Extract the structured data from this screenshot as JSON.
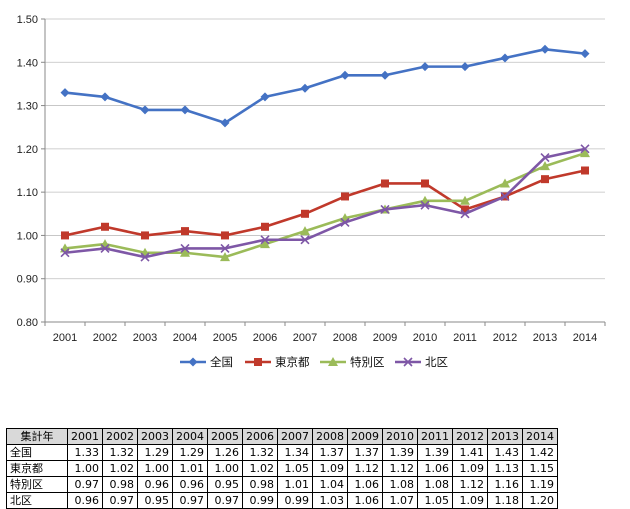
{
  "chart_data": {
    "type": "line",
    "x": [
      "2001",
      "2002",
      "2003",
      "2004",
      "2005",
      "2006",
      "2007",
      "2008",
      "2009",
      "2010",
      "2011",
      "2012",
      "2013",
      "2014"
    ],
    "ylim": [
      0.8,
      1.5
    ],
    "yticks": [
      "0.80",
      "0.90",
      "1.00",
      "1.10",
      "1.20",
      "1.30",
      "1.40",
      "1.50"
    ],
    "grid": true,
    "legend_position": "bottom",
    "series": [
      {
        "name": "全国",
        "color": "#4472c4",
        "marker": "diamond",
        "values": [
          1.33,
          1.32,
          1.29,
          1.29,
          1.26,
          1.32,
          1.34,
          1.37,
          1.37,
          1.39,
          1.39,
          1.41,
          1.43,
          1.42
        ]
      },
      {
        "name": "東京都",
        "color": "#c0392b",
        "marker": "square",
        "values": [
          1.0,
          1.02,
          1.0,
          1.01,
          1.0,
          1.02,
          1.05,
          1.09,
          1.12,
          1.12,
          1.06,
          1.09,
          1.13,
          1.15
        ]
      },
      {
        "name": "特別区",
        "color": "#9bbb59",
        "marker": "triangle",
        "values": [
          0.97,
          0.98,
          0.96,
          0.96,
          0.95,
          0.98,
          1.01,
          1.04,
          1.06,
          1.08,
          1.08,
          1.12,
          1.16,
          1.19
        ]
      },
      {
        "name": "北区",
        "color": "#7e57a6",
        "marker": "x",
        "values": [
          0.96,
          0.97,
          0.95,
          0.97,
          0.97,
          0.99,
          0.99,
          1.03,
          1.06,
          1.07,
          1.05,
          1.09,
          1.18,
          1.2
        ]
      }
    ]
  },
  "table": {
    "corner": "集計年",
    "rows": [
      {
        "label": "全国",
        "values": [
          "1.33",
          "1.32",
          "1.29",
          "1.29",
          "1.26",
          "1.32",
          "1.34",
          "1.37",
          "1.37",
          "1.39",
          "1.39",
          "1.41",
          "1.43",
          "1.42"
        ]
      },
      {
        "label": "東京都",
        "values": [
          "1.00",
          "1.02",
          "1.00",
          "1.01",
          "1.00",
          "1.02",
          "1.05",
          "1.09",
          "1.12",
          "1.12",
          "1.06",
          "1.09",
          "1.13",
          "1.15"
        ]
      },
      {
        "label": "特別区",
        "values": [
          "0.97",
          "0.98",
          "0.96",
          "0.96",
          "0.95",
          "0.98",
          "1.01",
          "1.04",
          "1.06",
          "1.08",
          "1.08",
          "1.12",
          "1.16",
          "1.19"
        ]
      },
      {
        "label": "北区",
        "values": [
          "0.96",
          "0.97",
          "0.95",
          "0.97",
          "0.97",
          "0.99",
          "0.99",
          "1.03",
          "1.06",
          "1.07",
          "1.05",
          "1.09",
          "1.18",
          "1.20"
        ]
      }
    ]
  }
}
